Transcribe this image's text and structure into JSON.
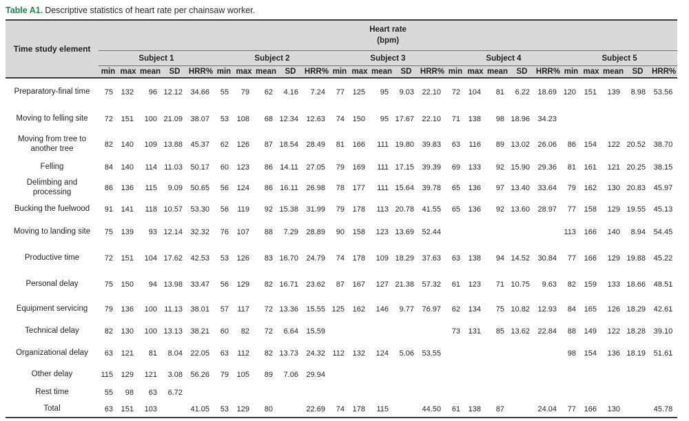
{
  "caption": {
    "label": "Table A1.",
    "text": "Descriptive statistics of heart rate per chainsaw worker."
  },
  "colors": {
    "caption_label_green": "#1d8649",
    "header_shading": "#d9d9d9",
    "rule_dark": "#3b3b3b",
    "rule_light": "#6f6f6f"
  },
  "table": {
    "row_header": "Time study element",
    "unit_header": "Heart rate\n(bpm)",
    "subjects": [
      "Subject 1",
      "Subject 2",
      "Subject 3",
      "Subject 4",
      "Subject 5"
    ],
    "stat_headers": [
      "min",
      "max",
      "mean",
      "SD",
      "HRR%"
    ],
    "rows": [
      {
        "label": "Preparatory-final time",
        "cells": [
          "75",
          "132",
          "96",
          "12.12",
          "34.66",
          "55",
          "79",
          "62",
          "4.16",
          "7.24",
          "77",
          "125",
          "95",
          "9.03",
          "22.10",
          "72",
          "104",
          "81",
          "6.22",
          "18.69",
          "120",
          "151",
          "139",
          "8.98",
          "53.56"
        ]
      },
      {
        "label": "Moving to felling site",
        "cells": [
          "72",
          "151",
          "100",
          "21.09",
          "38.07",
          "53",
          "108",
          "68",
          "12.34",
          "12.63",
          "74",
          "150",
          "95",
          "17.67",
          "22.10",
          "71",
          "138",
          "98",
          "18.96",
          "34.23",
          "",
          "",
          "",
          "",
          ""
        ]
      },
      {
        "label": "Moving from tree to another tree",
        "cells": [
          "82",
          "140",
          "109",
          "13.88",
          "45.37",
          "62",
          "126",
          "87",
          "18.54",
          "28.49",
          "81",
          "166",
          "111",
          "19.80",
          "39.83",
          "63",
          "116",
          "89",
          "13.02",
          "26.06",
          "86",
          "154",
          "122",
          "20.52",
          "38.70"
        ]
      },
      {
        "label": "Felling",
        "cells": [
          "84",
          "140",
          "114",
          "11.03",
          "50.17",
          "60",
          "123",
          "86",
          "14.11",
          "27.05",
          "79",
          "169",
          "111",
          "17.15",
          "39.39",
          "69",
          "133",
          "92",
          "15.90",
          "29.36",
          "81",
          "161",
          "121",
          "20.25",
          "38.15"
        ]
      },
      {
        "label": "Delimbing and processing",
        "cells": [
          "86",
          "136",
          "115",
          "9.09",
          "50.65",
          "56",
          "124",
          "86",
          "16.11",
          "26.98",
          "78",
          "177",
          "111",
          "15.64",
          "39.78",
          "65",
          "136",
          "97",
          "13.40",
          "33.64",
          "79",
          "162",
          "130",
          "20.83",
          "45.97"
        ]
      },
      {
        "label": "Bucking the fuelwood",
        "cells": [
          "91",
          "141",
          "118",
          "10.57",
          "53.30",
          "56",
          "119",
          "92",
          "15.38",
          "31.99",
          "79",
          "178",
          "113",
          "20.78",
          "41.55",
          "65",
          "136",
          "92",
          "13.60",
          "28.97",
          "77",
          "158",
          "129",
          "19.55",
          "45.13"
        ]
      },
      {
        "label": "Moving to landing site",
        "cells": [
          "75",
          "139",
          "93",
          "12.14",
          "32.32",
          "76",
          "107",
          "88",
          "7.29",
          "28.89",
          "90",
          "158",
          "123",
          "13.69",
          "52.44",
          "",
          "",
          "",
          "",
          "",
          "113",
          "166",
          "140",
          "8.94",
          "54.45"
        ]
      },
      {
        "label": "Productive time",
        "cells": [
          "72",
          "151",
          "104",
          "17.62",
          "42.53",
          "53",
          "126",
          "83",
          "16.70",
          "24.79",
          "74",
          "178",
          "109",
          "18.29",
          "37.63",
          "63",
          "138",
          "94",
          "14.52",
          "30.84",
          "77",
          "166",
          "129",
          "19.88",
          "45.22"
        ]
      },
      {
        "label": "Personal delay",
        "cells": [
          "75",
          "150",
          "94",
          "13.98",
          "33.47",
          "56",
          "129",
          "82",
          "16.71",
          "23.62",
          "87",
          "167",
          "127",
          "21.38",
          "57.32",
          "61",
          "123",
          "71",
          "10.75",
          "9.63",
          "82",
          "159",
          "133",
          "18.66",
          "48.51"
        ]
      },
      {
        "label": "Equipment servicing",
        "cells": [
          "79",
          "136",
          "100",
          "11.13",
          "38.01",
          "57",
          "117",
          "72",
          "13.36",
          "15.55",
          "125",
          "162",
          "146",
          "9.77",
          "76.97",
          "62",
          "134",
          "75",
          "10.82",
          "12.93",
          "84",
          "165",
          "126",
          "18.29",
          "42.61"
        ]
      },
      {
        "label": "Technical delay",
        "cells": [
          "82",
          "130",
          "100",
          "13.13",
          "38.21",
          "60",
          "82",
          "72",
          "6.64",
          "15.59",
          "",
          "",
          "",
          "",
          "",
          "73",
          "131",
          "85",
          "13.62",
          "22.84",
          "88",
          "149",
          "122",
          "18.28",
          "39.10"
        ]
      },
      {
        "label": "Organizational delay",
        "cells": [
          "63",
          "121",
          "81",
          "8.04",
          "22.05",
          "63",
          "112",
          "82",
          "13.73",
          "24.32",
          "112",
          "132",
          "124",
          "5.06",
          "53.55",
          "",
          "",
          "",
          "",
          "",
          "98",
          "154",
          "136",
          "18.19",
          "51.61"
        ]
      },
      {
        "label": "Other delay",
        "cells": [
          "115",
          "129",
          "121",
          "3.08",
          "56.26",
          "79",
          "105",
          "89",
          "7.06",
          "29.94",
          "",
          "",
          "",
          "",
          "",
          "",
          "",
          "",
          "",
          "",
          "",
          "",
          "",
          "",
          ""
        ]
      },
      {
        "label": "Rest time",
        "cells": [
          "55",
          "98",
          "63",
          "6.72",
          "",
          "",
          "",
          "",
          "",
          "",
          "",
          "",
          "",
          "",
          "",
          "",
          "",
          "",
          "",
          "",
          "",
          "",
          "",
          "",
          ""
        ]
      },
      {
        "label": "Total",
        "cells": [
          "63",
          "151",
          "103",
          "",
          "41.05",
          "53",
          "129",
          "80",
          "",
          "22.69",
          "74",
          "178",
          "115",
          "",
          "44.50",
          "61",
          "138",
          "87",
          "",
          "24.04",
          "77",
          "166",
          "130",
          "",
          "45.78"
        ]
      }
    ]
  }
}
